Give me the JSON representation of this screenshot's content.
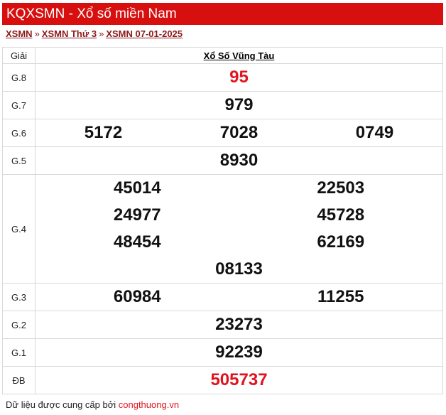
{
  "header": {
    "title": "KQXSMN - Xổ số miền Nam"
  },
  "breadcrumb": [
    {
      "label": "XSMN"
    },
    {
      "label": "XSMN Thứ 3"
    },
    {
      "label": "XSMN 07-01-2025"
    }
  ],
  "breadcrumb_sep": "»",
  "table": {
    "col_label": "Giải",
    "province": "Xổ Số Vũng Tàu",
    "prizes": {
      "g8": {
        "label": "G.8",
        "values": [
          "95"
        ]
      },
      "g7": {
        "label": "G.7",
        "values": [
          "979"
        ]
      },
      "g6": {
        "label": "G.6",
        "values": [
          "5172",
          "7028",
          "0749"
        ]
      },
      "g5": {
        "label": "G.5",
        "values": [
          "8930"
        ]
      },
      "g4": {
        "label": "G.4",
        "values": [
          "45014",
          "22503",
          "24977",
          "45728",
          "48454",
          "62169",
          "08133"
        ]
      },
      "g3": {
        "label": "G.3",
        "values": [
          "60984",
          "11255"
        ]
      },
      "g2": {
        "label": "G.2",
        "values": [
          "23273"
        ]
      },
      "g1": {
        "label": "G.1",
        "values": [
          "92239"
        ]
      },
      "db": {
        "label": "ĐB",
        "values": [
          "505737"
        ]
      }
    }
  },
  "footer": {
    "text": "Dữ liệu được cung cấp bởi ",
    "link": "congthuong.vn"
  },
  "colors": {
    "header_bg": "#d7100f",
    "highlight": "#e0141e",
    "link": "#8b1a1a"
  }
}
